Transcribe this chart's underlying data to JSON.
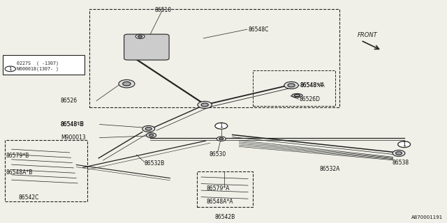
{
  "bg_color": "#f0f0e8",
  "line_color": "#222222",
  "diagram_id": "A870001191",
  "note_lines": [
    "0227S  ( -1307)",
    "N600018(1307- )"
  ]
}
